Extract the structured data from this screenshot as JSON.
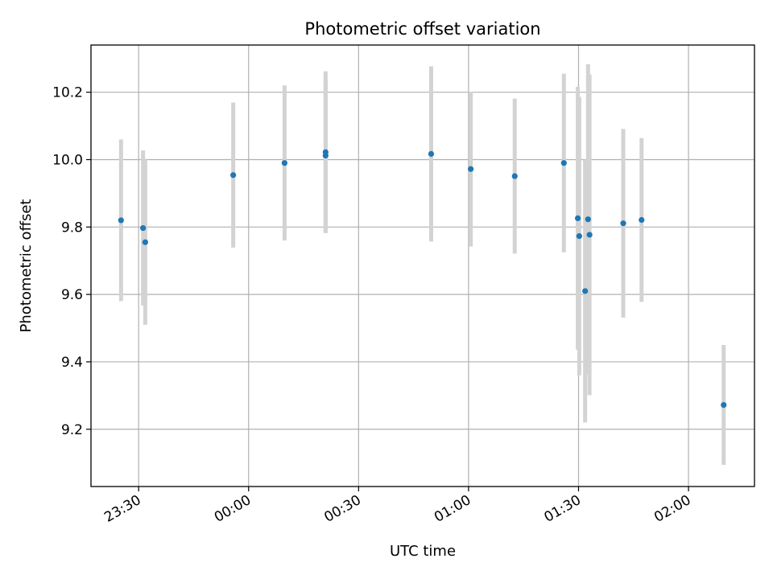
{
  "chart_data": {
    "type": "scatter",
    "title": "Photometric offset variation",
    "xlabel": "UTC time",
    "ylabel": "Photometric offset",
    "x_axis": {
      "kind": "time",
      "range": [
        "23:17",
        "02:18"
      ],
      "ticks": [
        {
          "value": "23:30",
          "label": "23:30"
        },
        {
          "value": "00:00",
          "label": "00:00"
        },
        {
          "value": "00:30",
          "label": "00:30"
        },
        {
          "value": "01:00",
          "label": "01:00"
        },
        {
          "value": "01:30",
          "label": "01:30"
        },
        {
          "value": "02:00",
          "label": "02:00"
        }
      ]
    },
    "y_axis": {
      "range": [
        9.03,
        10.34
      ],
      "ticks": [
        9.2,
        9.4,
        9.6,
        9.8,
        10.0,
        10.2
      ],
      "tick_labels": [
        "9.2",
        "9.4",
        "9.6",
        "9.8",
        "10.0",
        "10.2"
      ]
    },
    "grid": true,
    "legend": "none",
    "colors": {
      "point": "#1f77b4",
      "errorbar": "#d3d3d3",
      "grid": "#b0b0b0",
      "axes": "#000000"
    },
    "points": [
      {
        "x": "23:25:12",
        "y": 9.82,
        "err": 0.24
      },
      {
        "x": "23:31:12",
        "y": 9.797,
        "err": 0.23
      },
      {
        "x": "23:31:48",
        "y": 9.755,
        "err": 0.245
      },
      {
        "x": "23:55:48",
        "y": 9.954,
        "err": 0.215
      },
      {
        "x": "00:09:48",
        "y": 9.99,
        "err": 0.23
      },
      {
        "x": "00:21:00",
        "y": 10.022,
        "err": 0.24
      },
      {
        "x": "00:21:00",
        "y": 10.012,
        "err": 0.228
      },
      {
        "x": "00:49:48",
        "y": 10.017,
        "err": 0.26
      },
      {
        "x": "01:00:36",
        "y": 9.972,
        "err": 0.23
      },
      {
        "x": "01:12:36",
        "y": 9.951,
        "err": 0.23
      },
      {
        "x": "01:26:00",
        "y": 9.99,
        "err": 0.265
      },
      {
        "x": "01:29:48",
        "y": 9.826,
        "err": 0.39
      },
      {
        "x": "01:30:12",
        "y": 9.773,
        "err": 0.413
      },
      {
        "x": "01:31:48",
        "y": 9.61,
        "err": 0.39
      },
      {
        "x": "01:32:36",
        "y": 9.823,
        "err": 0.46
      },
      {
        "x": "01:33:00",
        "y": 9.777,
        "err": 0.476
      },
      {
        "x": "01:42:12",
        "y": 9.811,
        "err": 0.28
      },
      {
        "x": "01:47:12",
        "y": 9.821,
        "err": 0.243
      },
      {
        "x": "02:09:36",
        "y": 9.272,
        "err": 0.178
      }
    ]
  }
}
